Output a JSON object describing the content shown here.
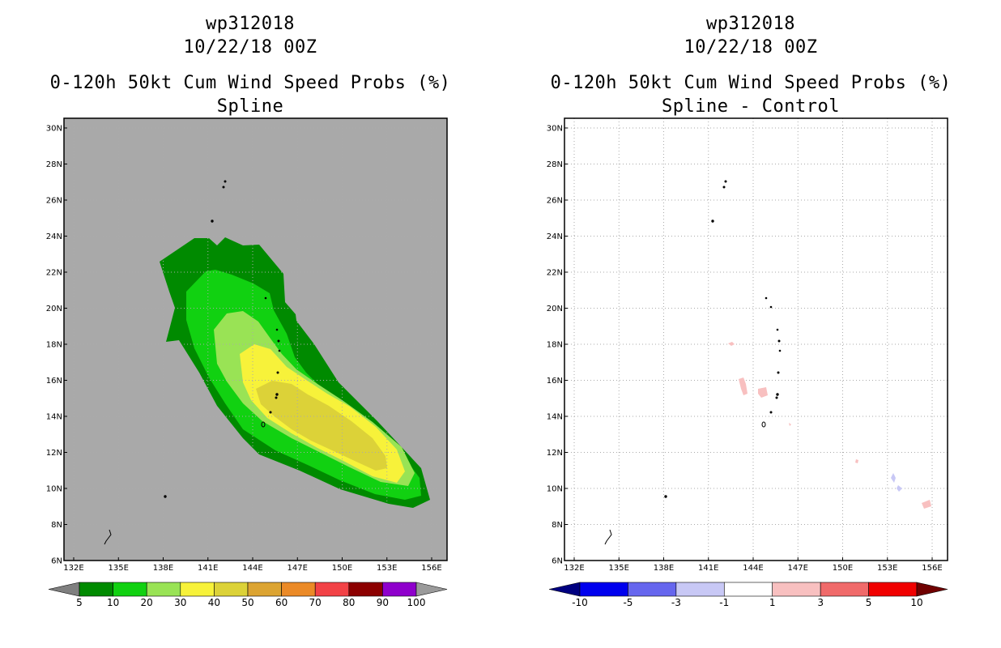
{
  "panels": [
    {
      "storm_id": "wp312018",
      "datetime": "10/22/18 00Z",
      "product": "0-120h 50kt Cum Wind Speed Probs (%)",
      "subtitle": "Spline",
      "colorbar": {
        "labels": [
          "5",
          "10",
          "20",
          "30",
          "40",
          "50",
          "60",
          "70",
          "80",
          "90",
          "100"
        ],
        "colors": [
          "#7f7f7f",
          "#008a00",
          "#11d111",
          "#99e355",
          "#f7f23a",
          "#dcd238",
          "#dca432",
          "#eb8a27",
          "#f24246",
          "#8c0000",
          "#8f00cc",
          "#9a9a9a"
        ]
      }
    },
    {
      "storm_id": "wp312018",
      "datetime": "10/22/18 00Z",
      "product": "0-120h 50kt Cum Wind Speed Probs (%)",
      "subtitle": "Spline - Control",
      "colorbar": {
        "labels": [
          "-10",
          "-5",
          "-3",
          "-1",
          "1",
          "3",
          "5",
          "10"
        ],
        "colors": [
          "#000080",
          "#0000ee",
          "#6666ee",
          "#c8c8f5",
          "#ffffff",
          "#f8c0c0",
          "#f06a6a",
          "#f00000",
          "#700000"
        ]
      }
    }
  ],
  "map": {
    "lon_labels": [
      "132E",
      "135E",
      "138E",
      "141E",
      "144E",
      "147E",
      "150E",
      "153E",
      "156E"
    ],
    "lat_labels": [
      "30N",
      "28N",
      "26N",
      "24N",
      "22N",
      "20N",
      "18N",
      "16N",
      "14N",
      "12N",
      "10N",
      "8N",
      "6N"
    ]
  },
  "colors": {
    "left_background": "#a9a9a9",
    "grid": "#aaaaaa"
  }
}
